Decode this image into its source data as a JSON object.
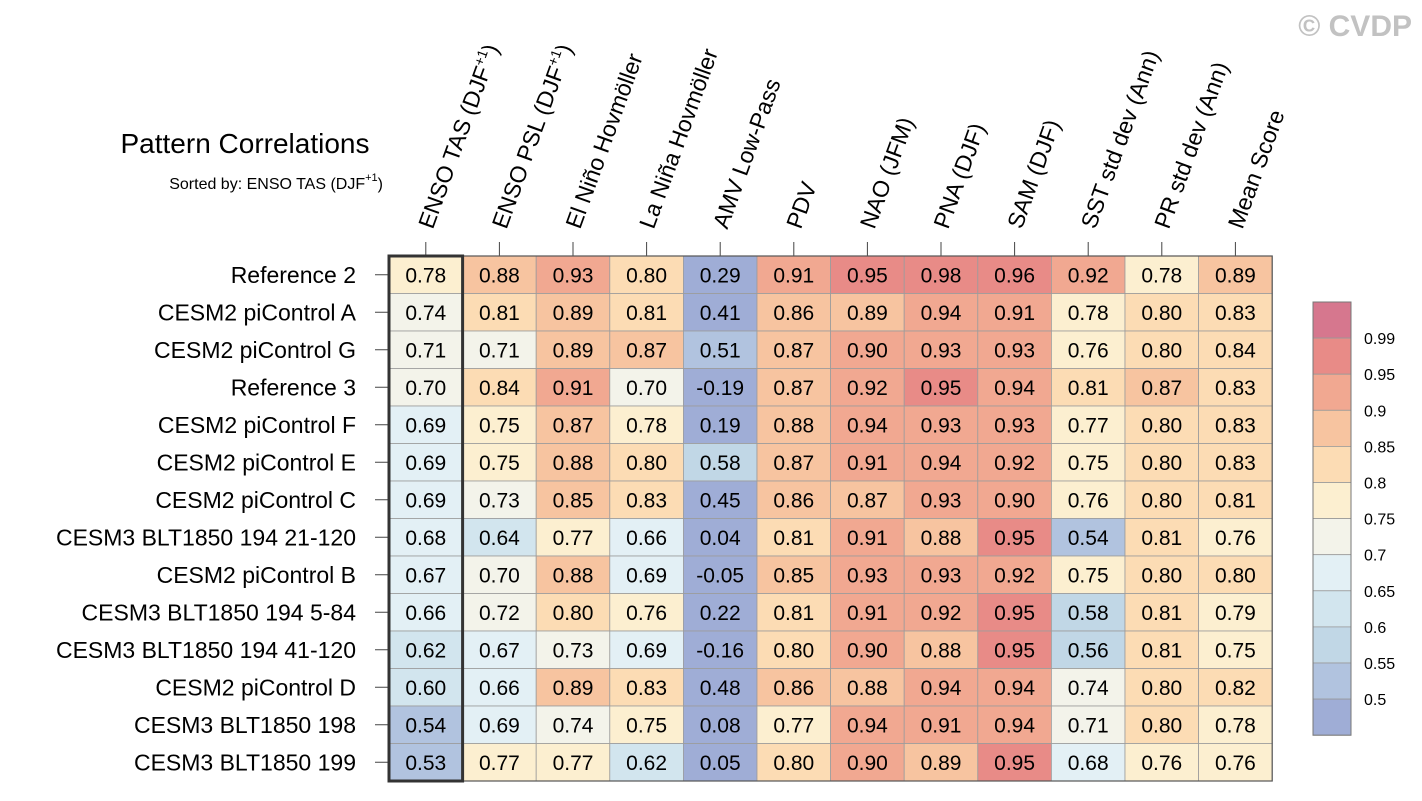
{
  "watermark": "© CVDP",
  "chart_data": {
    "type": "heatmap",
    "title": "Pattern Correlations",
    "subtitle": "Sorted by: ENSO TAS (DJF",
    "subtitle_sup": "+1",
    "subtitle_end": ")",
    "columns": [
      {
        "text": "ENSO TAS (DJF",
        "sup": "+1",
        "end": ")"
      },
      {
        "text": "ENSO PSL (DJF",
        "sup": "+1",
        "end": ")"
      },
      {
        "text": "El Niño Hovmöller",
        "sup": "",
        "end": ""
      },
      {
        "text": "La Niña Hovmöller",
        "sup": "",
        "end": ""
      },
      {
        "text": "AMV Low-Pass",
        "sup": "",
        "end": ""
      },
      {
        "text": "PDV",
        "sup": "",
        "end": ""
      },
      {
        "text": "NAO (JFM)",
        "sup": "",
        "end": ""
      },
      {
        "text": "PNA (DJF)",
        "sup": "",
        "end": ""
      },
      {
        "text": "SAM (DJF)",
        "sup": "",
        "end": ""
      },
      {
        "text": "SST std dev (Ann)",
        "sup": "",
        "end": ""
      },
      {
        "text": "PR std dev (Ann)",
        "sup": "",
        "end": ""
      },
      {
        "text": "Mean Score",
        "sup": "",
        "end": ""
      }
    ],
    "rows": [
      "Reference 2",
      "CESM2 piControl A",
      "CESM2 piControl G",
      "Reference 3",
      "CESM2 piControl F",
      "CESM2 piControl E",
      "CESM2 piControl C",
      "CESM3 BLT1850 194 21-120",
      "CESM2 piControl B",
      "CESM3 BLT1850 194 5-84",
      "CESM3 BLT1850 194 41-120",
      "CESM2 piControl D",
      "CESM3 BLT1850 198",
      "CESM3 BLT1850 199"
    ],
    "values": [
      [
        "0.78",
        "0.88",
        "0.93",
        "0.80",
        "0.29",
        "0.91",
        "0.95",
        "0.98",
        "0.96",
        "0.92",
        "0.78",
        "0.89"
      ],
      [
        "0.74",
        "0.81",
        "0.89",
        "0.81",
        "0.41",
        "0.86",
        "0.89",
        "0.94",
        "0.91",
        "0.78",
        "0.80",
        "0.83"
      ],
      [
        "0.71",
        "0.71",
        "0.89",
        "0.87",
        "0.51",
        "0.87",
        "0.90",
        "0.93",
        "0.93",
        "0.76",
        "0.80",
        "0.84"
      ],
      [
        "0.70",
        "0.84",
        "0.91",
        "0.70",
        "-0.19",
        "0.87",
        "0.92",
        "0.95",
        "0.94",
        "0.81",
        "0.87",
        "0.83"
      ],
      [
        "0.69",
        "0.75",
        "0.87",
        "0.78",
        "0.19",
        "0.88",
        "0.94",
        "0.93",
        "0.93",
        "0.77",
        "0.80",
        "0.83"
      ],
      [
        "0.69",
        "0.75",
        "0.88",
        "0.80",
        "0.58",
        "0.87",
        "0.91",
        "0.94",
        "0.92",
        "0.75",
        "0.80",
        "0.83"
      ],
      [
        "0.69",
        "0.73",
        "0.85",
        "0.83",
        "0.45",
        "0.86",
        "0.87",
        "0.93",
        "0.90",
        "0.76",
        "0.80",
        "0.81"
      ],
      [
        "0.68",
        "0.64",
        "0.77",
        "0.66",
        "0.04",
        "0.81",
        "0.91",
        "0.88",
        "0.95",
        "0.54",
        "0.81",
        "0.76"
      ],
      [
        "0.67",
        "0.70",
        "0.88",
        "0.69",
        "-0.05",
        "0.85",
        "0.93",
        "0.93",
        "0.92",
        "0.75",
        "0.80",
        "0.80"
      ],
      [
        "0.66",
        "0.72",
        "0.80",
        "0.76",
        "0.22",
        "0.81",
        "0.91",
        "0.92",
        "0.95",
        "0.58",
        "0.81",
        "0.79"
      ],
      [
        "0.62",
        "0.67",
        "0.73",
        "0.69",
        "-0.16",
        "0.80",
        "0.90",
        "0.88",
        "0.95",
        "0.56",
        "0.81",
        "0.75"
      ],
      [
        "0.60",
        "0.66",
        "0.89",
        "0.83",
        "0.48",
        "0.86",
        "0.88",
        "0.94",
        "0.94",
        "0.74",
        "0.80",
        "0.82"
      ],
      [
        "0.54",
        "0.69",
        "0.74",
        "0.75",
        "0.08",
        "0.77",
        "0.94",
        "0.91",
        "0.94",
        "0.71",
        "0.80",
        "0.78"
      ],
      [
        "0.53",
        "0.77",
        "0.77",
        "0.62",
        "0.05",
        "0.80",
        "0.90",
        "0.89",
        "0.95",
        "0.68",
        "0.76",
        "0.76"
      ]
    ],
    "highlighted_column": 0,
    "colorbar": {
      "levels": [
        "0.5",
        "0.55",
        "0.6",
        "0.65",
        "0.7",
        "0.75",
        "0.8",
        "0.85",
        "0.9",
        "0.95",
        "0.99"
      ],
      "thresholds": [
        0.5,
        0.55,
        0.6,
        0.65,
        0.7,
        0.75,
        0.8,
        0.85,
        0.9,
        0.95,
        0.99
      ],
      "colors": [
        "#9fadd6",
        "#b1c3df",
        "#c1d7e6",
        "#d2e5ee",
        "#e3f0f5",
        "#f3f3ea",
        "#fcefd0",
        "#fcdcb4",
        "#f7c4a0",
        "#f1a891",
        "#e88b87",
        "#d6778e"
      ]
    },
    "legend_position": "right"
  }
}
